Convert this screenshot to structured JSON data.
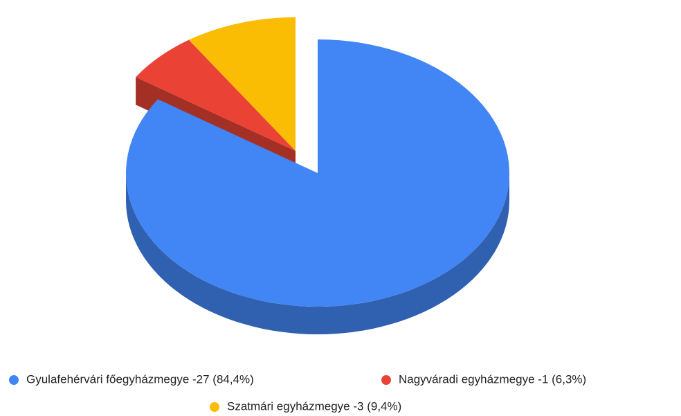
{
  "chart_data": {
    "type": "pie3d",
    "series": [
      {
        "name": "Gyulafehérvári főegyházmegye -27 (84,4%)",
        "color": "#4285f4",
        "values": [
          84.4
        ]
      },
      {
        "name": "Nagyváradi egyházmegye -1 (6,3%)",
        "color": "#ea4335",
        "values": [
          6.3
        ]
      },
      {
        "name": "Szatmári egyházmegye -3 (9,4%)",
        "color": "#fbbc04",
        "values": [
          9.4
        ]
      }
    ],
    "legend": "bottom"
  }
}
